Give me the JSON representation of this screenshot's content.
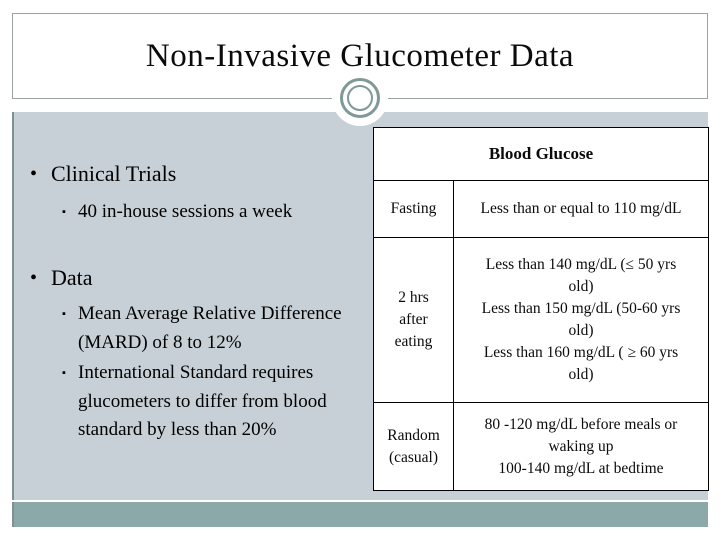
{
  "slide": {
    "title": "Non-Invasive Glucometer Data"
  },
  "bullets": {
    "dot": "•",
    "square": "▪",
    "items": [
      {
        "level": 1,
        "text": "Clinical Trials"
      },
      {
        "level": 2,
        "text": "40 in-house sessions a week"
      },
      {
        "level": 1,
        "text": "Data"
      },
      {
        "level": 2,
        "text": "Mean Average Relative Difference\n(MARD) of 8 to 12%"
      },
      {
        "level": 2,
        "text": "International Standard requires\nglucometers to differ from blood\nstandard by less than 20%"
      }
    ]
  },
  "table": {
    "header": "Blood Glucose",
    "rows": [
      {
        "label": "Fasting",
        "value": "Less than or equal to 110 mg/dL"
      },
      {
        "label": "2 hrs\nafter\neating",
        "value": "Less than 140 mg/dL (≤ 50 yrs\nold)\nLess than 150 mg/dL (50-60 yrs\nold)\nLess than 160 mg/dL ( ≥ 60 yrs\nold)"
      },
      {
        "label": "Random\n(casual)",
        "value": "80 -120 mg/dL before meals or\nwaking up\n100-140 mg/dL at bedtime"
      }
    ]
  },
  "colors": {
    "panel_background": "#c7d0d6",
    "bottom_band": "#8aa9a8",
    "ornament_ring": "#7e9997",
    "frame_border": "#99a3a4",
    "table_border": "#000000",
    "text": "#0b0b0b"
  }
}
